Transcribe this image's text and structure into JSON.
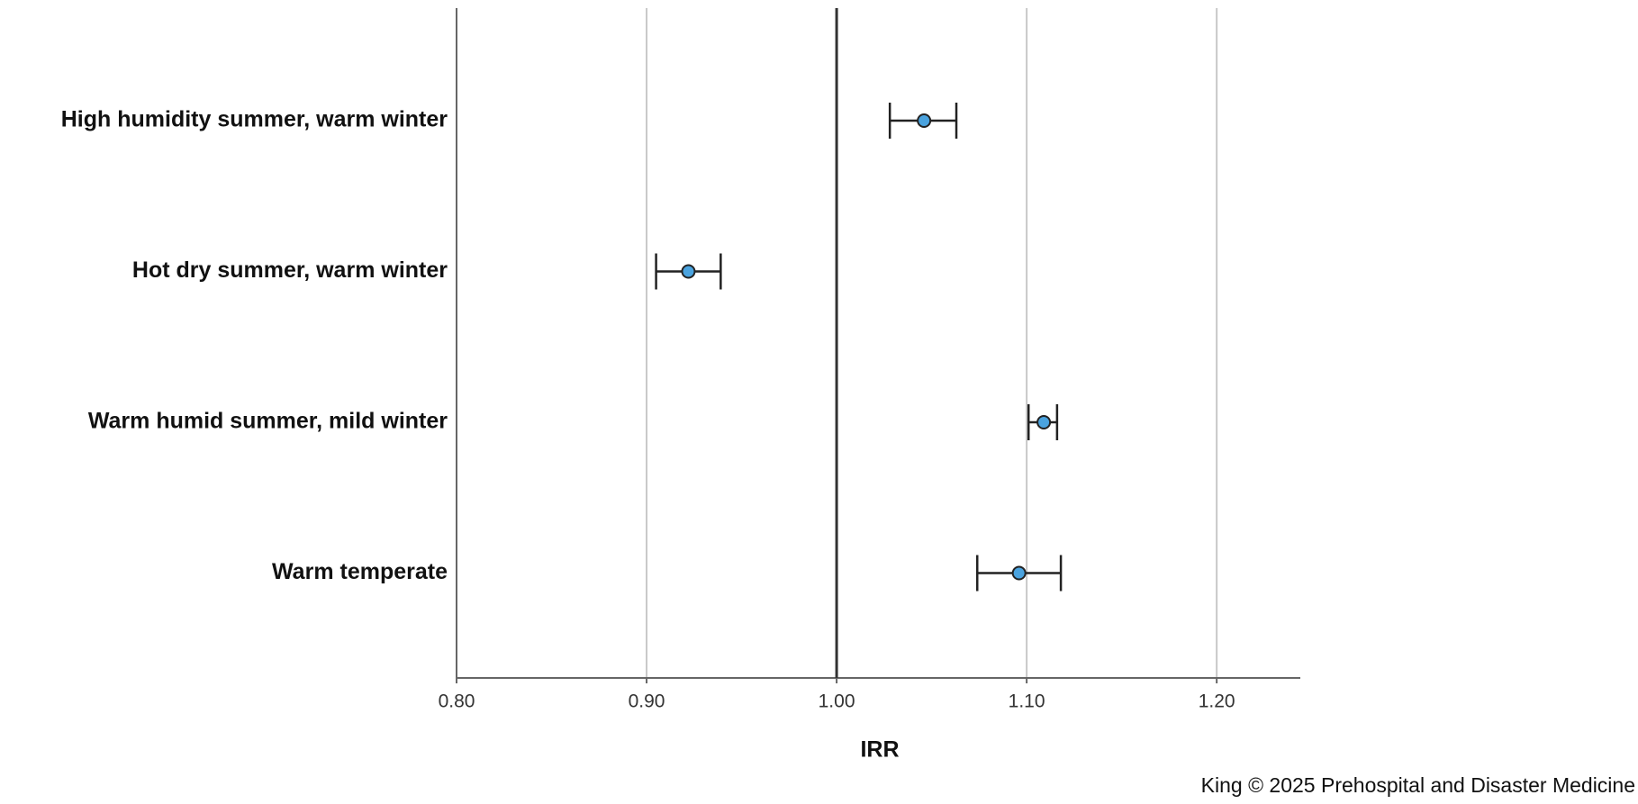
{
  "chart_data": {
    "type": "forest",
    "x_label": "IRR",
    "source": "King © 2025 Prehospital and Disaster Medicine",
    "categories": [
      "High humidity summer, warm winter",
      "Hot dry summer, warm winter",
      "Warm humid summer, mild winter",
      "Warm temperate"
    ],
    "values": [
      1.046,
      0.922,
      1.109,
      1.096
    ],
    "lower": [
      1.028,
      0.905,
      1.101,
      1.074
    ],
    "upper": [
      1.063,
      0.939,
      1.116,
      1.118
    ],
    "color": "#4aa3df",
    "reference_line": 1,
    "xlim": [
      0.8,
      1.244
    ],
    "xticks": [
      {
        "value": 0.8,
        "label": "0.80"
      },
      {
        "value": 0.9,
        "label": "0.90"
      },
      {
        "value": 1,
        "label": "1.00"
      },
      {
        "value": 1.1,
        "label": "1.10"
      },
      {
        "value": 1.2,
        "label": "1.20"
      }
    ],
    "grid": true
  }
}
